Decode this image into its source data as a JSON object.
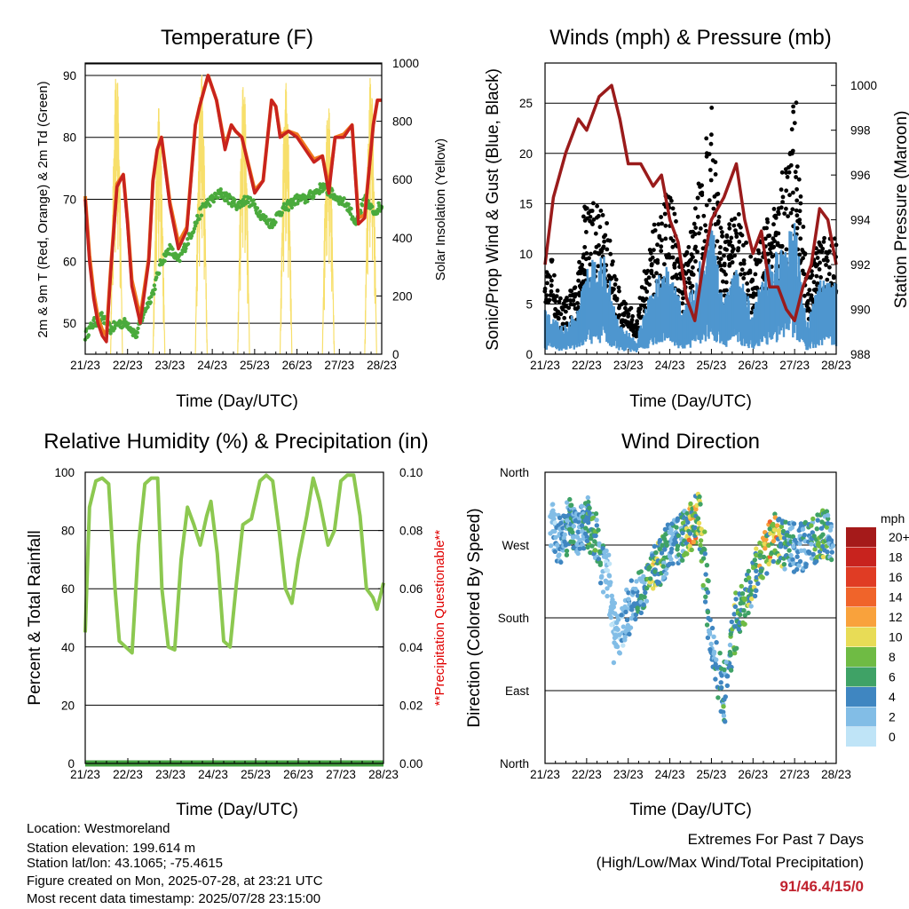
{
  "station": {
    "location": "Location: Westmoreland",
    "elevation": "Station elevation: 199.614 m",
    "latlon": "Station lat/lon: 43.1065; -75.4615",
    "created": "Figure created on Mon, 2025-07-28, at 23:21 UTC",
    "recent": "Most recent data timestamp: 2025/07/28 23:15:00"
  },
  "extremes": {
    "line1": "Extremes For Past 7 Days",
    "line2": "(High/Low/Max Wind/Total Precipitation)",
    "values": "91/46.4/15/0",
    "color": "#c0222e"
  },
  "colors": {
    "temp2m": "#c8231e",
    "temp9m": "#f07a1e",
    "dewpoint": "#4aaa3c",
    "solar": "#f7df6b",
    "wind": "#4e96cf",
    "gust": "#000000",
    "pressure": "#9a1b1b",
    "rh": "#8cc850",
    "precip": "#44a040",
    "note": "#e00000"
  },
  "chart_data": [
    {
      "type": "line",
      "title": "Temperature (F)",
      "xlabel": "Time (Day/UTC)",
      "ylabel": "2m & 9m T (Red, Orange) & 2m Td (Green)",
      "y2label": "Solar Insolation (Yellow)",
      "xticks": [
        "21/23",
        "22/23",
        "23/23",
        "24/23",
        "25/23",
        "26/23",
        "27/23",
        "28/23"
      ],
      "ylim": [
        45,
        92
      ],
      "yticks": [
        "50",
        "60",
        "70",
        "80",
        "90"
      ],
      "y2lim": [
        0,
        1000
      ],
      "y2ticks": [
        "0",
        "200",
        "400",
        "600",
        "800",
        "1000"
      ],
      "grid": true,
      "series": [
        {
          "x": [
            0,
            0.1,
            0.2,
            0.3,
            0.4,
            0.5,
            0.6,
            0.75,
            0.9,
            1.0,
            1.1,
            1.3,
            1.5,
            1.6,
            1.7,
            1.8,
            2.0,
            2.2,
            2.4,
            2.6,
            2.7,
            2.9,
            3.1,
            3.3,
            3.45,
            3.55,
            3.7,
            4.0,
            4.2,
            4.4,
            4.5,
            4.6,
            4.8,
            5.0,
            5.2,
            5.4,
            5.6,
            5.75,
            5.9,
            6.1,
            6.3,
            6.45,
            6.6,
            6.8,
            6.9,
            7.0
          ],
          "y": [
            70,
            60,
            54,
            50,
            48,
            47,
            58,
            72,
            74,
            66,
            56,
            50,
            60,
            73,
            78,
            80,
            69,
            62,
            65,
            82,
            85,
            90,
            86,
            78,
            82,
            81,
            80,
            71,
            73,
            86,
            85,
            80,
            81,
            80,
            78,
            76,
            77,
            71,
            80,
            80,
            82,
            66,
            67,
            82,
            86,
            86
          ]
        },
        {
          "x": [
            0,
            0.1,
            0.2,
            0.3,
            0.4,
            0.5,
            0.6,
            0.75,
            0.9,
            1.0,
            1.1,
            1.3,
            1.5,
            1.6,
            1.7,
            1.8,
            2.0,
            2.2,
            2.4,
            2.6,
            2.7,
            2.9,
            3.1,
            3.3,
            3.45,
            3.55,
            3.7,
            4.0,
            4.2,
            4.4,
            4.5,
            4.6,
            4.8,
            5.0,
            5.2,
            5.4,
            5.6,
            5.75,
            5.9,
            6.1,
            6.3,
            6.45,
            6.6,
            6.8,
            6.9,
            7.0
          ],
          "y": [
            70.5,
            61,
            55,
            51,
            49,
            48,
            58.5,
            72.5,
            74,
            66.5,
            57,
            51,
            60.5,
            73,
            78,
            80,
            69.5,
            63,
            65.5,
            82,
            85,
            90,
            86,
            78.5,
            82,
            81,
            80,
            71.5,
            73,
            86,
            85,
            80.5,
            81,
            80.5,
            78.5,
            76.5,
            77,
            72,
            80,
            80.5,
            82,
            67,
            67.5,
            82,
            86,
            86
          ]
        },
        {
          "x": [
            0,
            0.2,
            0.4,
            0.6,
            0.8,
            1.0,
            1.2,
            1.4,
            1.6,
            1.8,
            2.0,
            2.2,
            2.4,
            2.6,
            2.8,
            3.0,
            3.2,
            3.4,
            3.6,
            3.8,
            4.0,
            4.2,
            4.4,
            4.6,
            4.8,
            5.0,
            5.2,
            5.4,
            5.6,
            5.8,
            6.0,
            6.2,
            6.4,
            6.6,
            6.8,
            7.0
          ],
          "y": [
            48,
            50,
            51,
            49,
            50,
            50,
            48,
            52,
            55,
            60,
            62,
            60,
            63,
            66,
            69,
            70,
            71,
            70,
            69,
            70,
            69,
            67,
            66,
            68,
            69,
            70,
            70,
            71,
            72,
            71,
            70,
            69,
            66,
            70,
            68,
            69
          ]
        },
        {
          "x": [
            0.6,
            0.72,
            0.85,
            1.6,
            1.72,
            1.85,
            2.6,
            2.72,
            2.85,
            3.6,
            3.72,
            3.85,
            4.6,
            4.72,
            4.85,
            5.6,
            5.72,
            5.85,
            6.6,
            6.72,
            6.85
          ],
          "y": [
            0,
            980,
            0,
            0,
            850,
            0,
            0,
            970,
            0,
            0,
            940,
            0,
            0,
            930,
            0,
            0,
            860,
            0,
            0,
            960,
            0
          ]
        }
      ]
    },
    {
      "type": "line",
      "title": "Winds (mph) & Pressure (mb)",
      "xlabel": "Time (Day/UTC)",
      "ylabel": "Sonic/Prop Wind & Gust (Blue, Black)",
      "y2label": "Station Pressure (Maroon)",
      "xticks": [
        "21/23",
        "22/23",
        "23/23",
        "24/23",
        "25/23",
        "26/23",
        "27/23",
        "28/23"
      ],
      "ylim": [
        0,
        29
      ],
      "yticks": [
        "0",
        "5",
        "10",
        "15",
        "20",
        "25"
      ],
      "y2lim": [
        988,
        1001
      ],
      "y2ticks": [
        "988",
        "990",
        "992",
        "994",
        "996",
        "998",
        "1000"
      ],
      "grid": true,
      "series": [
        {
          "x": [
            0,
            0.4,
            0.8,
            1.0,
            1.4,
            1.8,
            2.2,
            2.6,
            3.0,
            3.3,
            3.6,
            4.0,
            4.3,
            4.6,
            5.0,
            5.3,
            5.6,
            6.0,
            6.3,
            6.6,
            7.0
          ],
          "y": [
            3,
            2,
            3,
            6,
            7,
            2,
            1,
            5,
            6,
            3,
            5,
            9,
            4,
            6,
            3,
            6,
            7,
            9,
            2,
            5,
            5
          ]
        },
        {
          "x": [
            0,
            0.4,
            0.8,
            1.0,
            1.4,
            1.8,
            2.2,
            2.6,
            3.0,
            3.3,
            3.6,
            4.0,
            4.3,
            4.6,
            5.0,
            5.3,
            5.6,
            6.0,
            6.3,
            6.6,
            7.0
          ],
          "y": [
            10,
            4,
            6,
            13,
            12,
            5,
            3,
            10,
            14,
            7,
            12,
            20,
            9,
            12,
            7,
            11,
            12,
            21,
            6,
            10,
            10
          ]
        },
        {
          "x": [
            0,
            0.2,
            0.5,
            0.8,
            1.0,
            1.3,
            1.6,
            1.8,
            2.0,
            2.3,
            2.6,
            2.8,
            3.0,
            3.2,
            3.4,
            3.6,
            3.8,
            4.0,
            4.3,
            4.6,
            4.8,
            5.0,
            5.2,
            5.4,
            5.6,
            5.8,
            6.0,
            6.2,
            6.4,
            6.6,
            6.8,
            7.0
          ],
          "y": [
            992,
            995,
            997,
            998.5,
            998,
            999.5,
            1000,
            998.5,
            996.5,
            996.5,
            995.5,
            996,
            994,
            993,
            990.5,
            989.5,
            992,
            994,
            995,
            996.5,
            994,
            992.5,
            993.5,
            991,
            991,
            990,
            989.5,
            991,
            992,
            994.5,
            994,
            992
          ]
        }
      ]
    },
    {
      "type": "line",
      "title": "Relative Humidity (%) & Precipitation (in)",
      "xlabel": "Time (Day/UTC)",
      "ylabel": "Percent & Total Rainfall",
      "y2label": "**Precipitation Questionable**",
      "xticks": [
        "21/23",
        "22/23",
        "23/23",
        "24/23",
        "25/23",
        "26/23",
        "27/23",
        "28/23"
      ],
      "ylim": [
        0,
        100
      ],
      "yticks": [
        "0",
        "20",
        "40",
        "60",
        "80",
        "100"
      ],
      "y2lim": [
        0,
        0.1
      ],
      "y2ticks": [
        "0.00",
        "0.02",
        "0.04",
        "0.06",
        "0.08",
        "0.10"
      ],
      "grid": true,
      "series": [
        {
          "x": [
            0,
            0.1,
            0.25,
            0.4,
            0.55,
            0.7,
            0.8,
            0.95,
            1.1,
            1.25,
            1.4,
            1.55,
            1.7,
            1.8,
            1.95,
            2.1,
            2.25,
            2.4,
            2.55,
            2.7,
            2.85,
            2.95,
            3.1,
            3.25,
            3.4,
            3.55,
            3.7,
            3.9,
            4.1,
            4.25,
            4.4,
            4.55,
            4.7,
            4.85,
            5.0,
            5.2,
            5.35,
            5.5,
            5.7,
            5.85,
            6.0,
            6.15,
            6.3,
            6.45,
            6.6,
            6.75,
            6.85,
            7.0
          ],
          "y": [
            45,
            88,
            97,
            98,
            96,
            60,
            42,
            40,
            38,
            75,
            96,
            98,
            98,
            60,
            40,
            39,
            70,
            88,
            82,
            75,
            85,
            90,
            72,
            42,
            40,
            62,
            82,
            84,
            97,
            99,
            97,
            80,
            60,
            55,
            70,
            85,
            98,
            90,
            75,
            80,
            97,
            99,
            99,
            85,
            60,
            57,
            53,
            62
          ]
        },
        {
          "x": [
            0,
            7.0
          ],
          "y": [
            0,
            0
          ]
        }
      ]
    },
    {
      "type": "scatter",
      "title": "Wind Direction",
      "xlabel": "Time (Day/UTC)",
      "ylabel": "Direction (Colored By Speed)",
      "xticks": [
        "21/23",
        "22/23",
        "23/23",
        "24/23",
        "25/23",
        "26/23",
        "27/23",
        "28/23"
      ],
      "yticks": [
        "North",
        "East",
        "South",
        "West",
        "North"
      ],
      "ylim": [
        0,
        360
      ],
      "grid": true,
      "legend": {
        "title": "mph",
        "labels": [
          "20+",
          "18",
          "16",
          "14",
          "12",
          "10",
          "8",
          "6",
          "4",
          "2",
          "0"
        ],
        "colors": [
          "#a51a1a",
          "#c8231e",
          "#e03c24",
          "#f0642a",
          "#f9a23c",
          "#e8dc56",
          "#6fbb44",
          "#3fa266",
          "#3f86c1",
          "#82bde6",
          "#bfe4f7"
        ]
      },
      "points": [
        {
          "x": 0.15,
          "y": 300,
          "v": 2
        },
        {
          "x": 0.4,
          "y": 270,
          "v": 4
        },
        {
          "x": 0.6,
          "y": 300,
          "v": 6
        },
        {
          "x": 0.8,
          "y": 285,
          "v": 4
        },
        {
          "x": 1.0,
          "y": 300,
          "v": 6
        },
        {
          "x": 1.2,
          "y": 280,
          "v": 8
        },
        {
          "x": 1.5,
          "y": 230,
          "v": 2
        },
        {
          "x": 1.7,
          "y": 150,
          "v": 2
        },
        {
          "x": 2.0,
          "y": 190,
          "v": 4
        },
        {
          "x": 2.3,
          "y": 210,
          "v": 6
        },
        {
          "x": 2.6,
          "y": 240,
          "v": 10
        },
        {
          "x": 2.8,
          "y": 250,
          "v": 8
        },
        {
          "x": 3.0,
          "y": 270,
          "v": 4
        },
        {
          "x": 3.3,
          "y": 280,
          "v": 6
        },
        {
          "x": 3.5,
          "y": 290,
          "v": 12
        },
        {
          "x": 3.7,
          "y": 310,
          "v": 10
        },
        {
          "x": 4.0,
          "y": 150,
          "v": 4
        },
        {
          "x": 4.3,
          "y": 80,
          "v": 6
        },
        {
          "x": 4.6,
          "y": 180,
          "v": 8
        },
        {
          "x": 4.9,
          "y": 210,
          "v": 8
        },
        {
          "x": 5.2,
          "y": 250,
          "v": 10
        },
        {
          "x": 5.5,
          "y": 280,
          "v": 12
        },
        {
          "x": 5.8,
          "y": 270,
          "v": 6
        },
        {
          "x": 6.1,
          "y": 265,
          "v": 4
        },
        {
          "x": 6.4,
          "y": 275,
          "v": 6
        },
        {
          "x": 6.7,
          "y": 285,
          "v": 8
        },
        {
          "x": 6.9,
          "y": 280,
          "v": 4
        }
      ]
    }
  ]
}
